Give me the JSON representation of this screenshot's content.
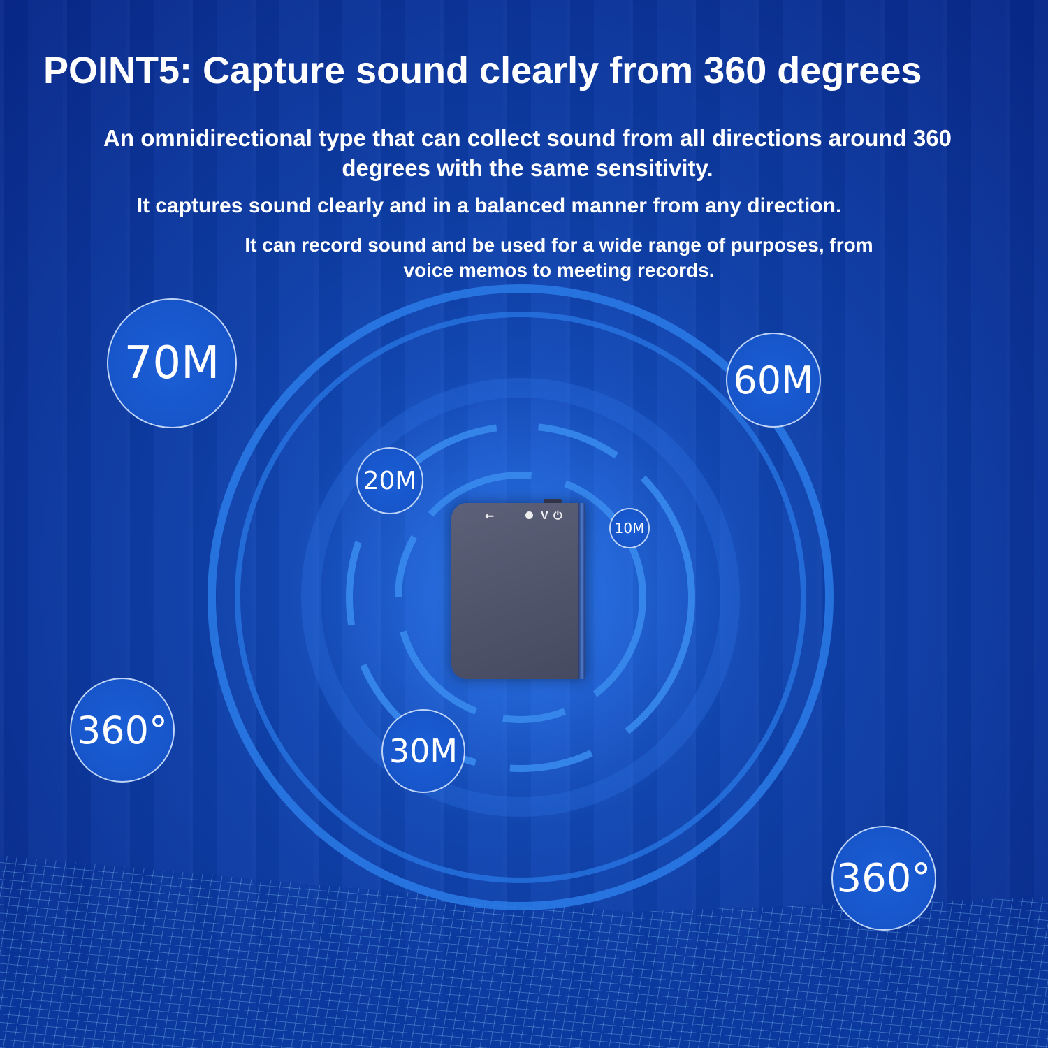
{
  "title": "POINT5: Capture sound clearly from 360 degrees",
  "paragraphs": [
    "An omnidirectional type that can collect sound from all directions around 360 degrees with the same sensitivity.",
    "It captures sound clearly and in a balanced manner from any direction.",
    "It can record sound and be used for a wide range of purposes, from voice memos to meeting records."
  ],
  "badges": {
    "b70": "70M",
    "b60": "60M",
    "b20": "20M",
    "b10": "10M",
    "b30": "30M",
    "deg_left": "360°",
    "deg_right": "360°"
  },
  "device": {
    "button_label": "V",
    "icons": [
      "usb-icon",
      "led-icon",
      "power-icon"
    ]
  },
  "colors": {
    "background": "#0e3fa8",
    "ring": "#2a7be8",
    "text": "#ffffff"
  }
}
